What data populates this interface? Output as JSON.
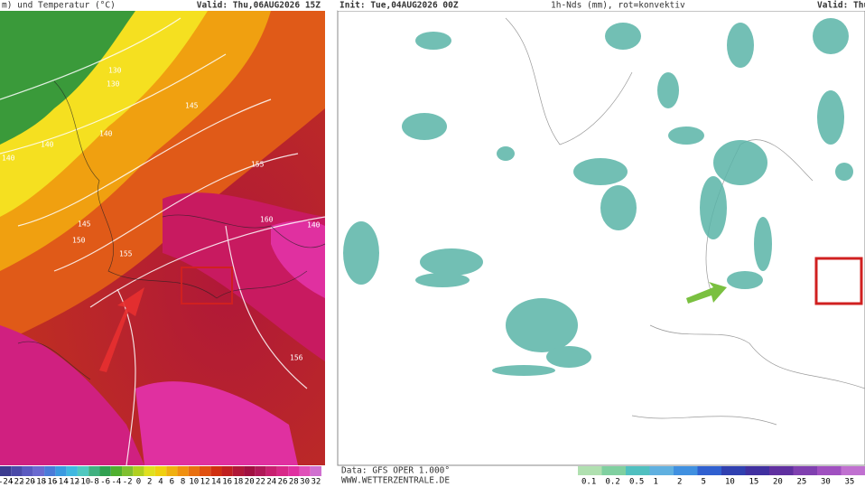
{
  "left_panel": {
    "title": "m) und Temperatur (°C)",
    "valid": "Valid: Thu,06AUG2026 15Z",
    "contour_labels": [
      "130",
      "130",
      "145",
      "140",
      "140",
      "140",
      "155",
      "145",
      "150",
      "155",
      "160",
      "140",
      "156"
    ],
    "scale_labels": [
      "-24",
      "-22",
      "-20",
      "-18",
      "-16",
      "-14",
      "-12",
      "-10",
      "-8",
      "-6",
      "-4",
      "-2",
      "0",
      "2",
      "4",
      "6",
      "8",
      "10",
      "12",
      "14",
      "16",
      "18",
      "20",
      "22",
      "24",
      "26",
      "28",
      "30",
      "32"
    ]
  },
  "right_panel": {
    "init": "Init: Tue,04AUG2026 00Z",
    "title": "1h-Nds (mm), rot=konvektiv",
    "valid": "Valid: Thu",
    "data_source": "Data: GFS OPER 1.000°",
    "website": "WWW.WETTERZENTRALE.DE",
    "scale_labels": [
      "0.1",
      "0.2",
      "0.5",
      "1",
      "2",
      "5",
      "10",
      "15",
      "20",
      "25",
      "30",
      "35"
    ]
  }
}
